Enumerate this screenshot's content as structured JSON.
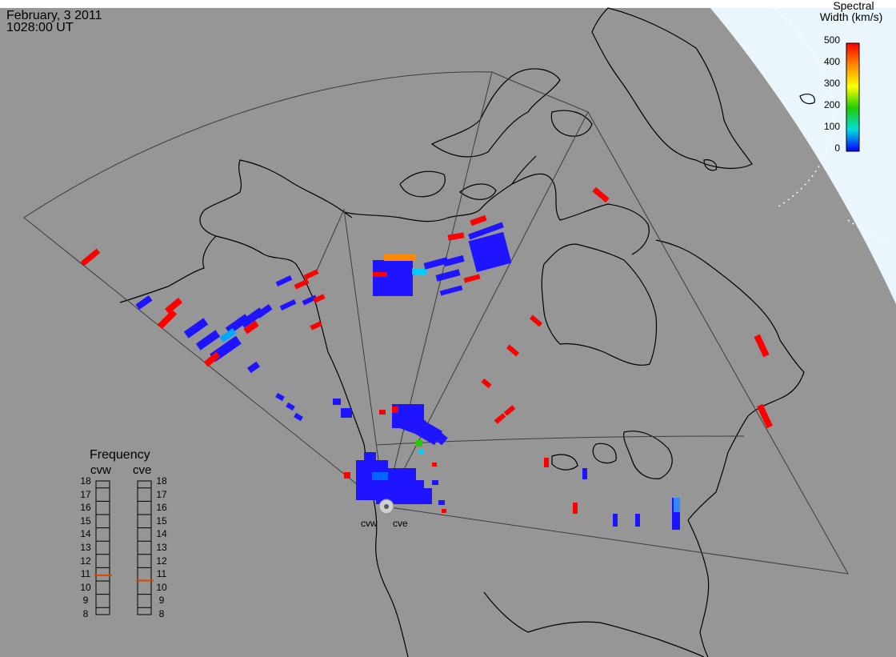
{
  "header": {
    "date": "February, 3 2011",
    "time": "1028:00 UT"
  },
  "colorbar": {
    "title_line1": "Spectral",
    "title_line2": "Width (km/s)",
    "ticks": [
      "500",
      "400",
      "300",
      "200",
      "100",
      "0"
    ],
    "colors": [
      "#ff0000",
      "#ff8800",
      "#ffff00",
      "#22cc00",
      "#00dddd",
      "#0000ff"
    ]
  },
  "frequency": {
    "title": "Frequency",
    "columns": [
      "cvw",
      "cve"
    ],
    "ticks": [
      "18",
      "17",
      "16",
      "15",
      "14",
      "13",
      "12",
      "11",
      "10",
      "9",
      "8"
    ],
    "selected": {
      "cvw": 10.9,
      "cve": 10.5
    },
    "marker_color": "#dd4400"
  },
  "radars": [
    "cvw",
    "cve"
  ],
  "colors": {
    "background": "#969696",
    "polar_region": "#eaf6fc",
    "coastline": "#000000",
    "scatter_low": "#1e14ff",
    "scatter_high": "#ff0000"
  }
}
